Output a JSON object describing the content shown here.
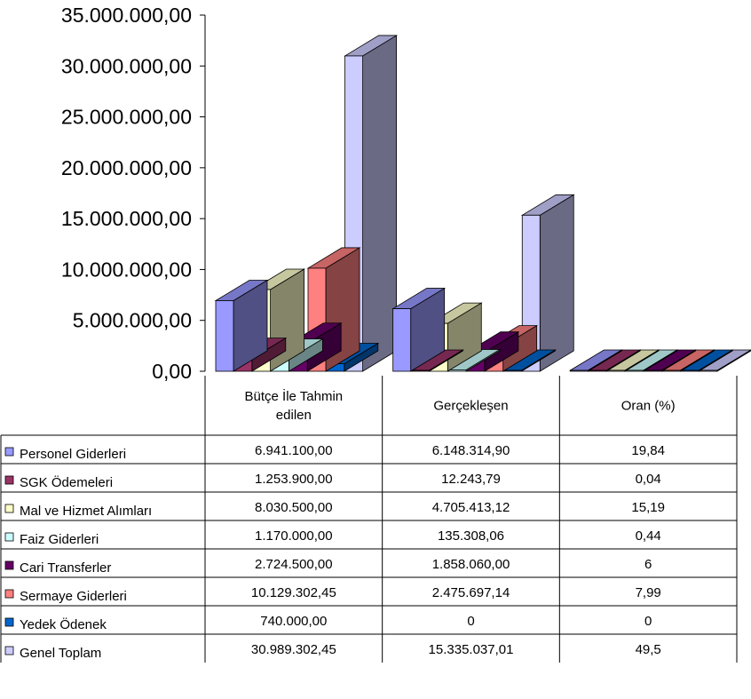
{
  "chart_data": {
    "type": "bar",
    "style": "3d-clustered-column-with-data-table",
    "categories": [
      "Bütçe İle Tahmin edilen",
      "Gerçekleşen",
      "Oran (%)"
    ],
    "category_lines": [
      [
        "Bütçe İle Tahmin",
        "edilen"
      ],
      [
        "Gerçekleşen"
      ],
      [
        "Oran (%)"
      ]
    ],
    "ylim": [
      0,
      35000000
    ],
    "yticks": [
      0,
      5000000,
      10000000,
      15000000,
      20000000,
      25000000,
      30000000,
      35000000
    ],
    "ytick_labels": [
      "0,00",
      "5.000.000,00",
      "10.000.000,00",
      "15.000.000,00",
      "20.000.000,00",
      "25.000.000,00",
      "30.000.000,00",
      "35.000.000,00"
    ],
    "grid": false,
    "legend": "left, inside data table",
    "series": [
      {
        "name": "Personel Giderleri",
        "color": "#9999ff",
        "values": [
          6941100.0,
          6148314.9,
          19.84
        ],
        "labels": [
          "6.941.100,00",
          "6.148.314,90",
          "19,84"
        ]
      },
      {
        "name": "SGK Ödemeleri",
        "color": "#993366",
        "values": [
          1253900.0,
          12243.79,
          0.04
        ],
        "labels": [
          "1.253.900,00",
          "12.243,79",
          "0,04"
        ]
      },
      {
        "name": "Mal ve Hizmet Alımları",
        "color": "#ffffcc",
        "values": [
          8030500.0,
          4705413.12,
          15.19
        ],
        "labels": [
          "8.030.500,00",
          "4.705.413,12",
          "15,19"
        ]
      },
      {
        "name": "Faiz Giderleri",
        "color": "#ccffff",
        "values": [
          1170000.0,
          135308.06,
          0.44
        ],
        "labels": [
          "1.170.000,00",
          "135.308,06",
          "0,44"
        ]
      },
      {
        "name": "Cari Transferler",
        "color": "#660066",
        "values": [
          2724500.0,
          1858060.0,
          6
        ],
        "labels": [
          "2.724.500,00",
          "1.858.060,00",
          "6"
        ]
      },
      {
        "name": "Sermaye Giderleri",
        "color": "#ff8080",
        "values": [
          10129302.45,
          2475697.14,
          7.99
        ],
        "labels": [
          "10.129.302,45",
          "2.475.697,14",
          "7,99"
        ]
      },
      {
        "name": "Yedek Ödenek",
        "color": "#0066cc",
        "values": [
          740000.0,
          0,
          0
        ],
        "labels": [
          "740.000,00",
          "0",
          "0"
        ]
      },
      {
        "name": "Genel Toplam",
        "color": "#ccccff",
        "values": [
          30989302.45,
          15335037.01,
          49.5
        ],
        "labels": [
          "30.989.302,45",
          "15.335.037,01",
          "49,5"
        ]
      }
    ]
  }
}
